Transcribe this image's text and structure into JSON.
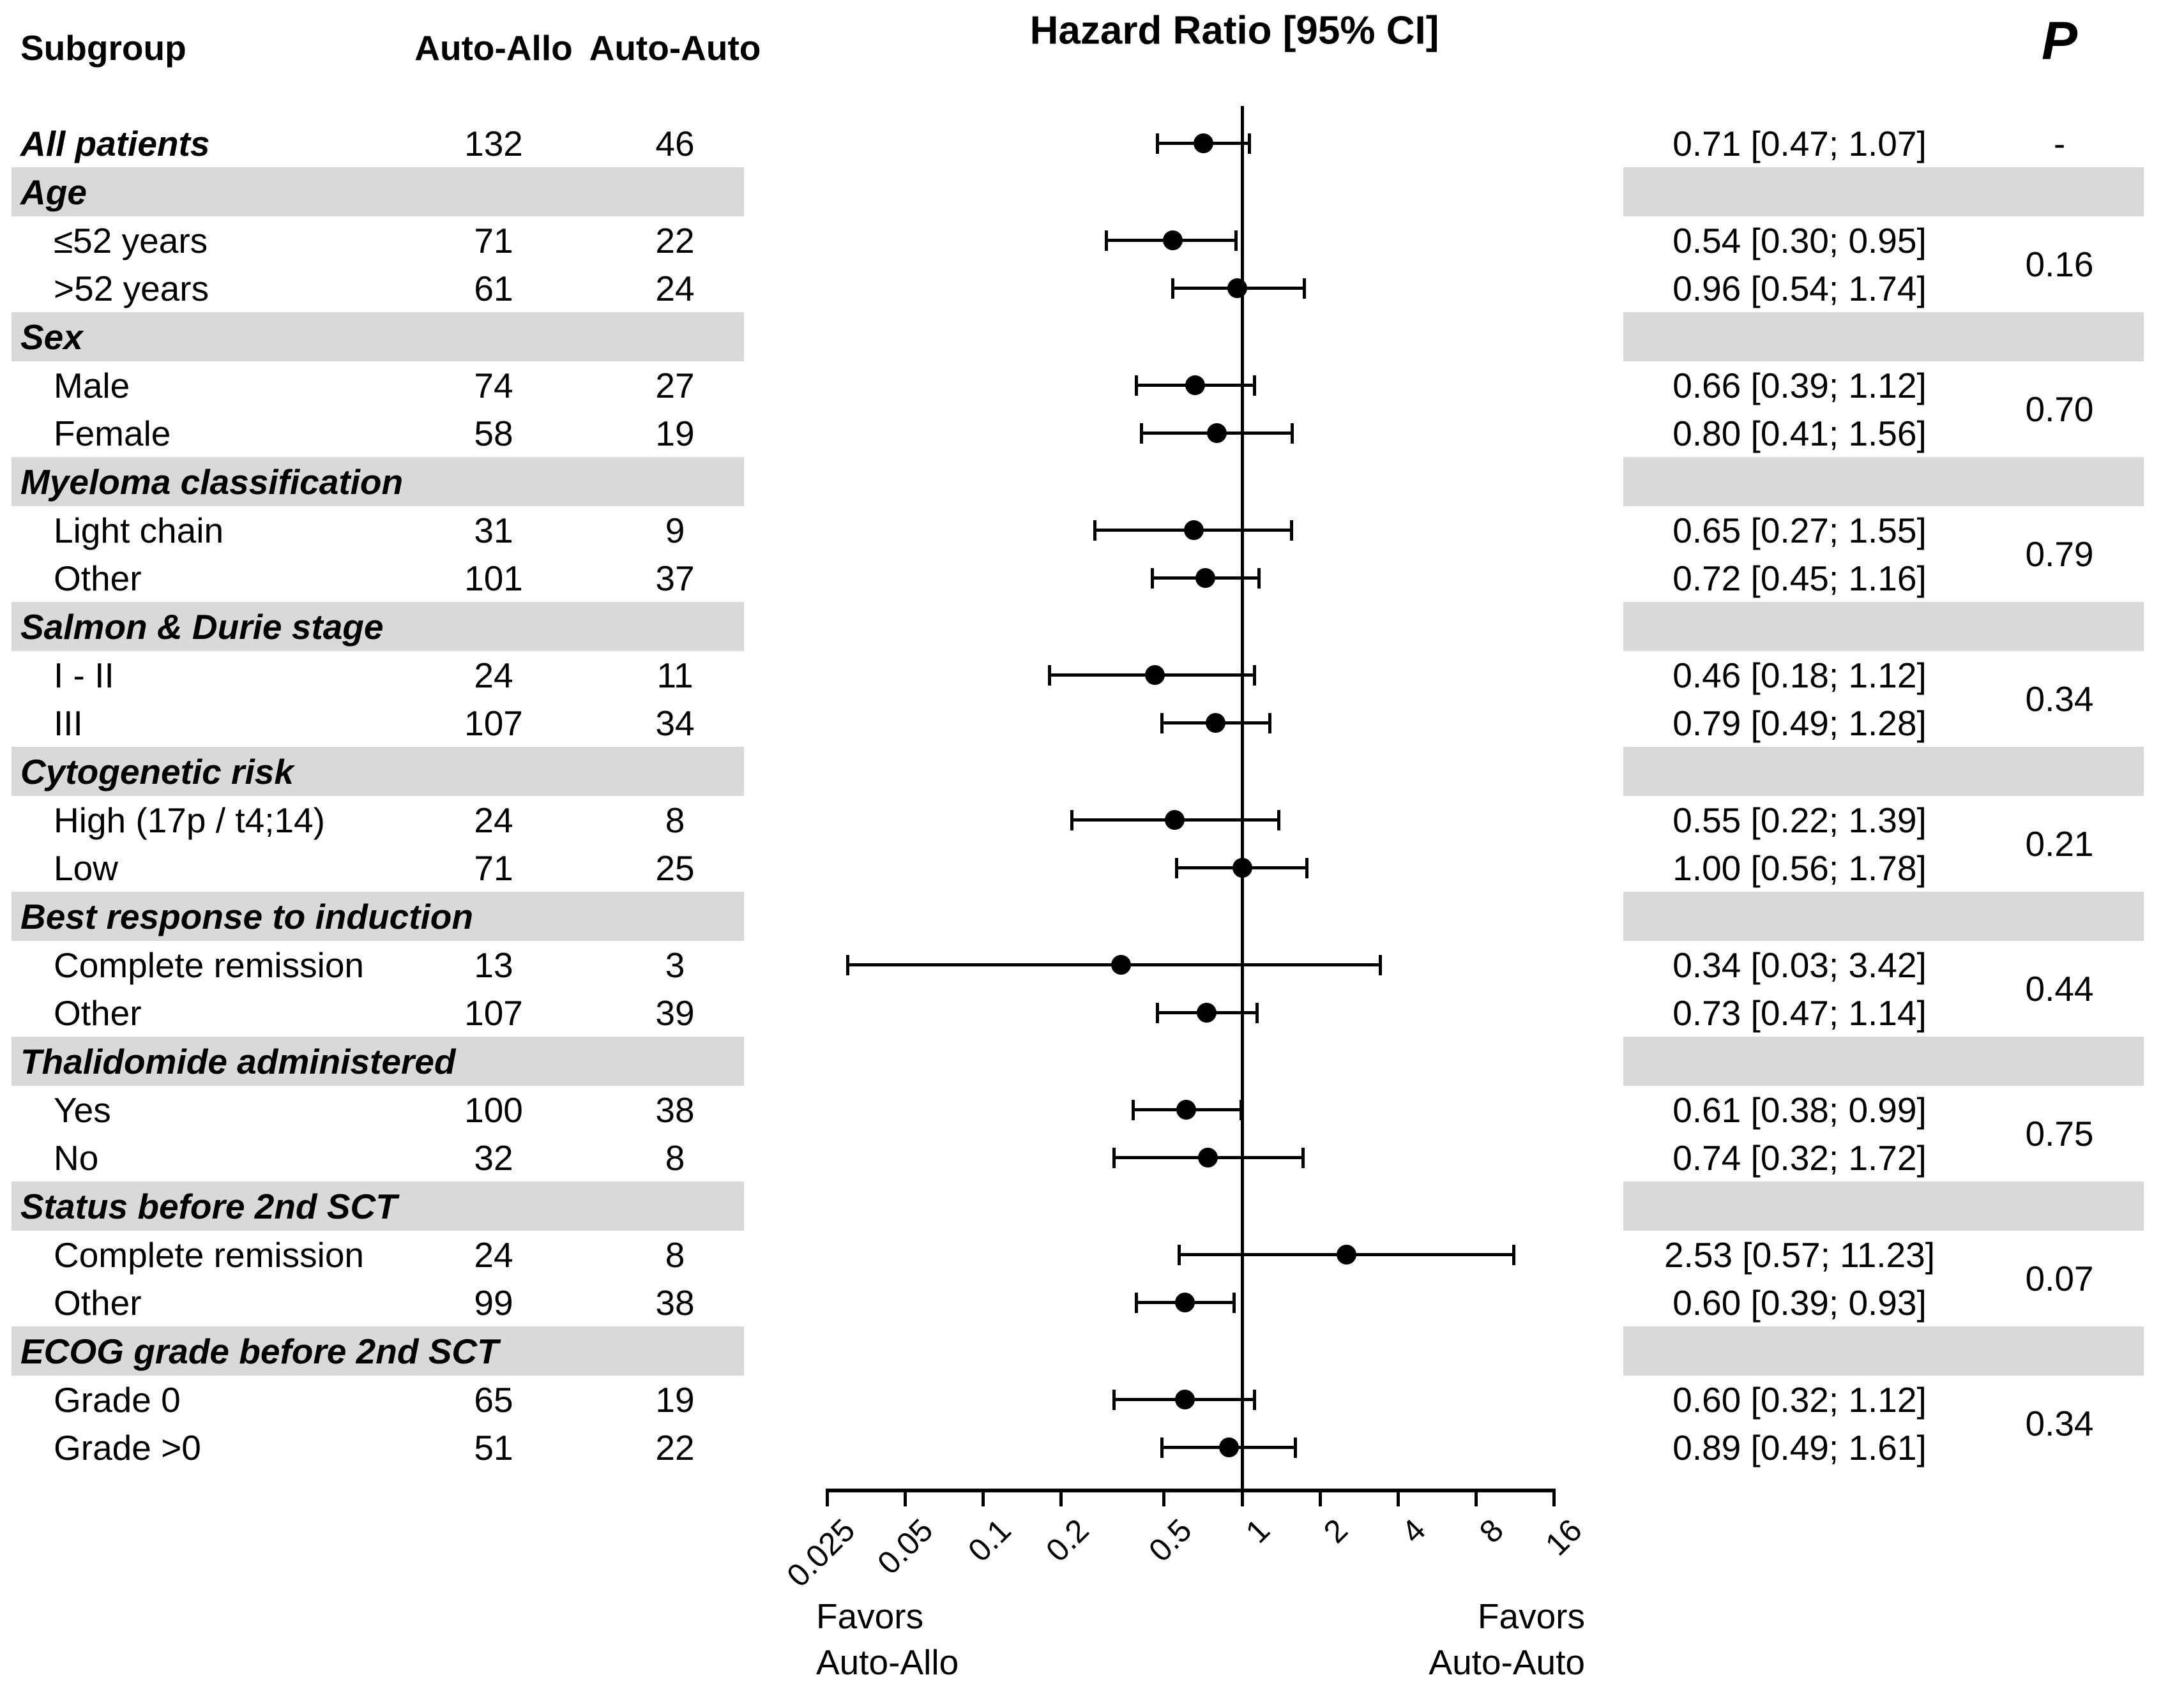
{
  "header": {
    "subgroup": "Subgroup",
    "col1": "Auto-Allo",
    "col2": "Auto-Auto",
    "title": "Hazard Ratio [95% CI]",
    "p": "P"
  },
  "axis": {
    "ticks": [
      "0.025",
      "0.05",
      "0.1",
      "0.2",
      "0.5",
      "1",
      "2",
      "4",
      "8",
      "16"
    ],
    "tick_values": [
      0.025,
      0.05,
      0.1,
      0.2,
      0.5,
      1,
      2,
      4,
      8,
      16
    ],
    "favors_left_line1": "Favors",
    "favors_left_line2": "Auto-Allo",
    "favors_right_line1": "Favors",
    "favors_right_line2": "Auto-Auto"
  },
  "colors": {
    "band": "#d9d9d9",
    "ink": "#000000"
  },
  "rows": [
    {
      "type": "data",
      "style": "all",
      "label": "All patients",
      "n1": "132",
      "n2": "46",
      "hr": 0.71,
      "lo": 0.47,
      "hi": 1.07,
      "ci": "0.71 [0.47; 1.07]",
      "p": "-"
    },
    {
      "type": "section",
      "label": "Age",
      "p": "0.16"
    },
    {
      "type": "data",
      "label": "≤52 years",
      "n1": "71",
      "n2": "22",
      "hr": 0.54,
      "lo": 0.3,
      "hi": 0.95,
      "ci": "0.54 [0.30; 0.95]"
    },
    {
      "type": "data",
      "label": ">52 years",
      "n1": "61",
      "n2": "24",
      "hr": 0.96,
      "lo": 0.54,
      "hi": 1.74,
      "ci": "0.96 [0.54; 1.74]"
    },
    {
      "type": "section",
      "label": "Sex",
      "p": "0.70"
    },
    {
      "type": "data",
      "label": "Male",
      "n1": "74",
      "n2": "27",
      "hr": 0.66,
      "lo": 0.39,
      "hi": 1.12,
      "ci": "0.66 [0.39; 1.12]"
    },
    {
      "type": "data",
      "label": "Female",
      "n1": "58",
      "n2": "19",
      "hr": 0.8,
      "lo": 0.41,
      "hi": 1.56,
      "ci": "0.80 [0.41; 1.56]"
    },
    {
      "type": "section",
      "label": "Myeloma classification",
      "p": "0.79"
    },
    {
      "type": "data",
      "label": "Light chain",
      "n1": "31",
      "n2": "9",
      "hr": 0.65,
      "lo": 0.27,
      "hi": 1.55,
      "ci": "0.65 [0.27; 1.55]"
    },
    {
      "type": "data",
      "label": "Other",
      "n1": "101",
      "n2": "37",
      "hr": 0.72,
      "lo": 0.45,
      "hi": 1.16,
      "ci": "0.72 [0.45; 1.16]"
    },
    {
      "type": "section",
      "label": "Salmon & Durie stage",
      "p": "0.34"
    },
    {
      "type": "data",
      "label": "I - II",
      "n1": "24",
      "n2": "11",
      "hr": 0.46,
      "lo": 0.18,
      "hi": 1.12,
      "ci": "0.46 [0.18; 1.12]"
    },
    {
      "type": "data",
      "label": "III",
      "n1": "107",
      "n2": "34",
      "hr": 0.79,
      "lo": 0.49,
      "hi": 1.28,
      "ci": "0.79 [0.49; 1.28]"
    },
    {
      "type": "section",
      "label": "Cytogenetic risk",
      "p": "0.21"
    },
    {
      "type": "data",
      "label": "High (17p / t4;14)",
      "n1": "24",
      "n2": "8",
      "hr": 0.55,
      "lo": 0.22,
      "hi": 1.39,
      "ci": "0.55 [0.22; 1.39]"
    },
    {
      "type": "data",
      "label": "Low",
      "n1": "71",
      "n2": "25",
      "hr": 1.0,
      "lo": 0.56,
      "hi": 1.78,
      "ci": "1.00 [0.56; 1.78]"
    },
    {
      "type": "section",
      "label": "Best response to induction",
      "p": "0.44"
    },
    {
      "type": "data",
      "label": "Complete remission",
      "n1": "13",
      "n2": "3",
      "hr": 0.34,
      "lo": 0.03,
      "hi": 3.42,
      "ci": "0.34 [0.03; 3.42]"
    },
    {
      "type": "data",
      "label": "Other",
      "n1": "107",
      "n2": "39",
      "hr": 0.73,
      "lo": 0.47,
      "hi": 1.14,
      "ci": "0.73 [0.47; 1.14]"
    },
    {
      "type": "section",
      "label": "Thalidomide administered",
      "p": "0.75"
    },
    {
      "type": "data",
      "label": "Yes",
      "n1": "100",
      "n2": "38",
      "hr": 0.61,
      "lo": 0.38,
      "hi": 0.99,
      "ci": "0.61 [0.38; 0.99]"
    },
    {
      "type": "data",
      "label": "No",
      "n1": "32",
      "n2": "8",
      "hr": 0.74,
      "lo": 0.32,
      "hi": 1.72,
      "ci": "0.74 [0.32; 1.72]"
    },
    {
      "type": "section",
      "label": "Status before 2nd SCT",
      "p": "0.07"
    },
    {
      "type": "data",
      "label": "Complete remission",
      "n1": "24",
      "n2": "8",
      "hr": 2.53,
      "lo": 0.57,
      "hi": 11.23,
      "ci": "2.53 [0.57; 11.23]"
    },
    {
      "type": "data",
      "label": "Other",
      "n1": "99",
      "n2": "38",
      "hr": 0.6,
      "lo": 0.39,
      "hi": 0.93,
      "ci": "0.60 [0.39; 0.93]"
    },
    {
      "type": "section",
      "label": "ECOG grade before 2nd SCT",
      "p": "0.34"
    },
    {
      "type": "data",
      "label": "Grade 0",
      "n1": "65",
      "n2": "19",
      "hr": 0.6,
      "lo": 0.32,
      "hi": 1.12,
      "ci": "0.60 [0.32; 1.12]"
    },
    {
      "type": "data",
      "label": "Grade >0",
      "n1": "51",
      "n2": "22",
      "hr": 0.89,
      "lo": 0.49,
      "hi": 1.61,
      "ci": "0.89 [0.49; 1.61]"
    }
  ],
  "chart_data": {
    "type": "scatter",
    "subtype": "forest-plot",
    "title": "Hazard Ratio [95% CI]",
    "xscale": "log",
    "xlim": [
      0.025,
      16
    ],
    "xticks": [
      0.025,
      0.05,
      0.1,
      0.2,
      0.5,
      1,
      2,
      4,
      8,
      16
    ],
    "reference_line_x": 1,
    "xlabel_left": "Favors Auto-Allo",
    "xlabel_right": "Favors Auto-Auto",
    "columns": [
      "Subgroup",
      "Auto-Allo",
      "Auto-Auto",
      "Hazard Ratio [95% CI]",
      "P"
    ],
    "series": [
      {
        "group": null,
        "subgroup": "All patients",
        "auto_allo_n": 132,
        "auto_auto_n": 46,
        "hr": 0.71,
        "ci95": [
          0.47,
          1.07
        ],
        "p": "-"
      },
      {
        "group": "Age",
        "subgroup": "≤52 years",
        "auto_allo_n": 71,
        "auto_auto_n": 22,
        "hr": 0.54,
        "ci95": [
          0.3,
          0.95
        ],
        "p_group": 0.16
      },
      {
        "group": "Age",
        "subgroup": ">52 years",
        "auto_allo_n": 61,
        "auto_auto_n": 24,
        "hr": 0.96,
        "ci95": [
          0.54,
          1.74
        ]
      },
      {
        "group": "Sex",
        "subgroup": "Male",
        "auto_allo_n": 74,
        "auto_auto_n": 27,
        "hr": 0.66,
        "ci95": [
          0.39,
          1.12
        ],
        "p_group": 0.7
      },
      {
        "group": "Sex",
        "subgroup": "Female",
        "auto_allo_n": 58,
        "auto_auto_n": 19,
        "hr": 0.8,
        "ci95": [
          0.41,
          1.56
        ]
      },
      {
        "group": "Myeloma classification",
        "subgroup": "Light chain",
        "auto_allo_n": 31,
        "auto_auto_n": 9,
        "hr": 0.65,
        "ci95": [
          0.27,
          1.55
        ],
        "p_group": 0.79
      },
      {
        "group": "Myeloma classification",
        "subgroup": "Other",
        "auto_allo_n": 101,
        "auto_auto_n": 37,
        "hr": 0.72,
        "ci95": [
          0.45,
          1.16
        ]
      },
      {
        "group": "Salmon & Durie stage",
        "subgroup": "I - II",
        "auto_allo_n": 24,
        "auto_auto_n": 11,
        "hr": 0.46,
        "ci95": [
          0.18,
          1.12
        ],
        "p_group": 0.34
      },
      {
        "group": "Salmon & Durie stage",
        "subgroup": "III",
        "auto_allo_n": 107,
        "auto_auto_n": 34,
        "hr": 0.79,
        "ci95": [
          0.49,
          1.28
        ]
      },
      {
        "group": "Cytogenetic risk",
        "subgroup": "High (17p / t4;14)",
        "auto_allo_n": 24,
        "auto_auto_n": 8,
        "hr": 0.55,
        "ci95": [
          0.22,
          1.39
        ],
        "p_group": 0.21
      },
      {
        "group": "Cytogenetic risk",
        "subgroup": "Low",
        "auto_allo_n": 71,
        "auto_auto_n": 25,
        "hr": 1.0,
        "ci95": [
          0.56,
          1.78
        ]
      },
      {
        "group": "Best response to induction",
        "subgroup": "Complete remission",
        "auto_allo_n": 13,
        "auto_auto_n": 3,
        "hr": 0.34,
        "ci95": [
          0.03,
          3.42
        ],
        "p_group": 0.44
      },
      {
        "group": "Best response to induction",
        "subgroup": "Other",
        "auto_allo_n": 107,
        "auto_auto_n": 39,
        "hr": 0.73,
        "ci95": [
          0.47,
          1.14
        ]
      },
      {
        "group": "Thalidomide administered",
        "subgroup": "Yes",
        "auto_allo_n": 100,
        "auto_auto_n": 38,
        "hr": 0.61,
        "ci95": [
          0.38,
          0.99
        ],
        "p_group": 0.75
      },
      {
        "group": "Thalidomide administered",
        "subgroup": "No",
        "auto_allo_n": 32,
        "auto_auto_n": 8,
        "hr": 0.74,
        "ci95": [
          0.32,
          1.72
        ]
      },
      {
        "group": "Status before 2nd SCT",
        "subgroup": "Complete remission",
        "auto_allo_n": 24,
        "auto_auto_n": 8,
        "hr": 2.53,
        "ci95": [
          0.57,
          11.23
        ],
        "p_group": 0.07
      },
      {
        "group": "Status before 2nd SCT",
        "subgroup": "Other",
        "auto_allo_n": 99,
        "auto_auto_n": 38,
        "hr": 0.6,
        "ci95": [
          0.39,
          0.93
        ]
      },
      {
        "group": "ECOG grade before 2nd SCT",
        "subgroup": "Grade 0",
        "auto_allo_n": 65,
        "auto_auto_n": 19,
        "hr": 0.6,
        "ci95": [
          0.32,
          1.12
        ],
        "p_group": 0.34
      },
      {
        "group": "ECOG grade before 2nd SCT",
        "subgroup": "Grade >0",
        "auto_allo_n": 51,
        "auto_auto_n": 22,
        "hr": 0.89,
        "ci95": [
          0.49,
          1.61
        ]
      }
    ]
  }
}
